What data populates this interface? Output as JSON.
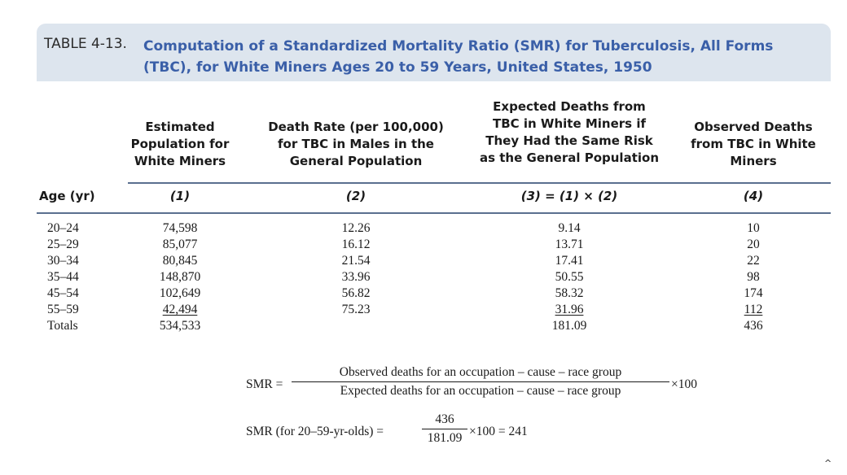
{
  "table": {
    "label": "TABLE 4-13.",
    "title_lines": [
      "Computation of a Standardized Mortality Ratio (SMR) for Tuberculosis, All Forms",
      "(TBC), for White Miners Ages 20 to 59 Years, United States, 1950"
    ]
  },
  "headers": {
    "age": "Age (yr)",
    "columns": [
      {
        "lines": [
          "Estimated",
          "Population for",
          "White Miners"
        ],
        "num": "(1)"
      },
      {
        "lines": [
          "Death Rate (per 100,000)",
          "for TBC in Males in the",
          "General Population"
        ],
        "num": "(2)"
      },
      {
        "lines": [
          "Expected Deaths from",
          "TBC in White Miners if",
          "They Had the Same Risk",
          "as the General Population"
        ],
        "num": "(3) = (1) × (2)"
      },
      {
        "lines": [
          "Observed Deaths",
          "from TBC in White",
          "Miners"
        ],
        "num": "(4)"
      }
    ]
  },
  "rows": [
    {
      "age": "20–24",
      "pop": "74,598",
      "rate": "12.26",
      "expected": "9.14",
      "observed": "10"
    },
    {
      "age": "25–29",
      "pop": "85,077",
      "rate": "16.12",
      "expected": "13.71",
      "observed": "20"
    },
    {
      "age": "30–34",
      "pop": "80,845",
      "rate": "21.54",
      "expected": "17.41",
      "observed": "22"
    },
    {
      "age": "35–44",
      "pop": "148,870",
      "rate": "33.96",
      "expected": "50.55",
      "observed": "98"
    },
    {
      "age": "45–54",
      "pop": "102,649",
      "rate": "56.82",
      "expected": "58.32",
      "observed": "174"
    },
    {
      "age": "55–59",
      "pop": "42,494",
      "rate": "75.23",
      "expected": "31.96",
      "observed": "112"
    },
    {
      "age": "Totals",
      "pop": "534,533",
      "rate": "",
      "expected": "181.09",
      "observed": "436"
    }
  ],
  "formula": {
    "lhs1": "SMR =",
    "num1": "Observed deaths for an occupation – cause – race group",
    "den1": "Expected deaths for an occupation – cause – race group",
    "rhs1": "×100",
    "lhs2": "SMR (for 20–59-yr-olds) =",
    "num2": "436",
    "den2": "181.09",
    "rhs2": "×100 = 241"
  },
  "colors": {
    "title_blue": "#3a5fa8",
    "banner_bg": "#dde5ee",
    "rule": "#5a6f8f"
  }
}
